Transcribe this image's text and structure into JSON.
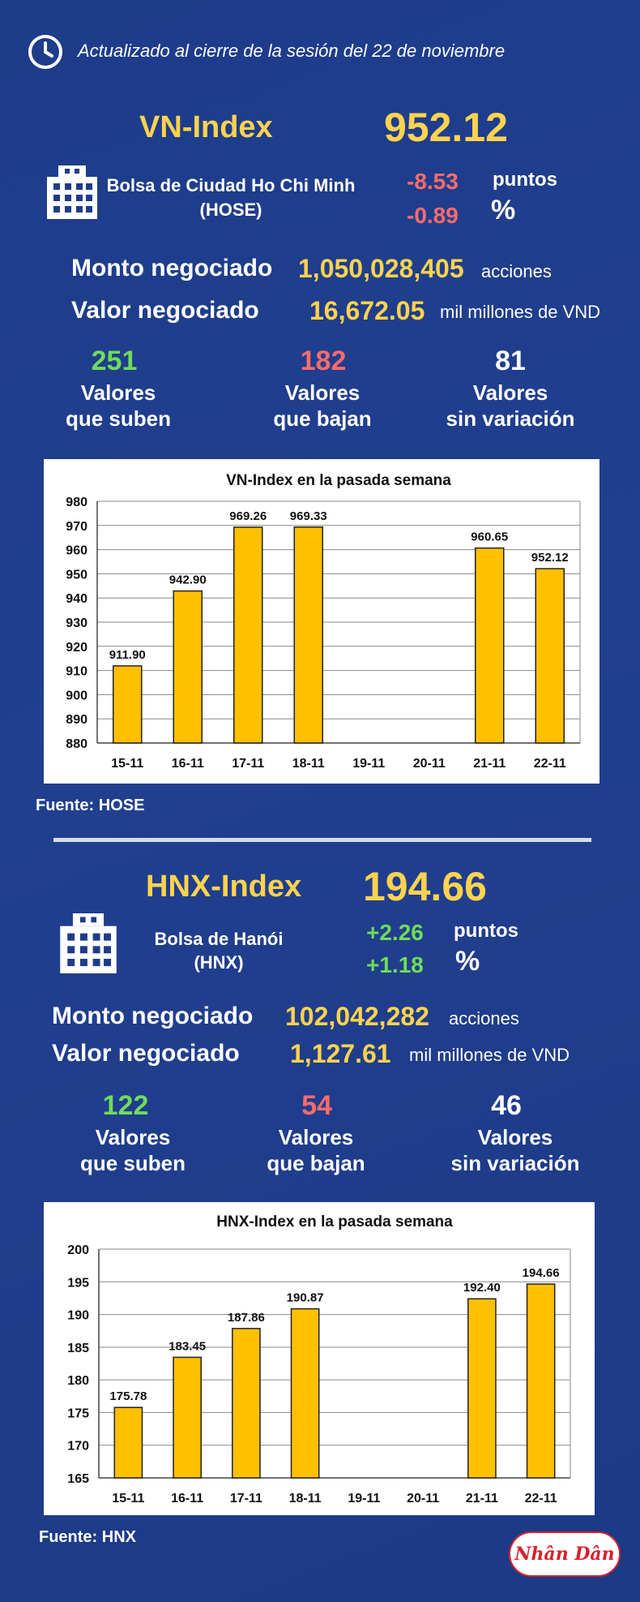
{
  "header": {
    "updated_text": "Actualizado al cierre de la sesión del 22 de noviembre",
    "icon": "clock-icon"
  },
  "hose": {
    "index_name": "VN-Index",
    "index_value": "952.12",
    "exchange_name": "Bolsa de Ciudad Ho Chi Minh",
    "exchange_code": "(HOSE)",
    "change_points": "-8.53",
    "change_points_unit": "puntos",
    "change_percent": "-0.89",
    "change_percent_unit": "%",
    "volume_label": "Monto negociado",
    "volume_value": "1,050,028,405",
    "volume_unit": "acciones",
    "value_label": "Valor negociado",
    "value_value": "16,672.05",
    "value_unit": "mil millones de VND",
    "up_count": "251",
    "up_label_1": "Valores",
    "up_label_2": "que suben",
    "down_count": "182",
    "down_label_1": "Valores",
    "down_label_2": "que bajan",
    "flat_count": "81",
    "flat_label_1": "Valores",
    "flat_label_2": "sin variación",
    "source": "Fuente: HOSE"
  },
  "hnx": {
    "index_name": "HNX-Index",
    "index_value": "194.66",
    "exchange_name": "Bolsa de Hanói",
    "exchange_code": "(HNX)",
    "change_points": "+2.26",
    "change_points_unit": "puntos",
    "change_percent": "+1.18",
    "change_percent_unit": "%",
    "volume_label": "Monto negociado",
    "volume_value": "102,042,282",
    "volume_unit": "acciones",
    "value_label": "Valor negociado",
    "value_value": "1,127.61",
    "value_unit": "mil millones de VND",
    "up_count": "122",
    "up_label_1": "Valores",
    "up_label_2": "que suben",
    "down_count": "54",
    "down_label_1": "Valores",
    "down_label_2": "que bajan",
    "flat_count": "46",
    "flat_label_1": "Valores",
    "flat_label_2": "sin variación",
    "source": "Fuente:  HNX"
  },
  "logo_text": "Nhân Dân",
  "colors": {
    "background": "#1e3c8a",
    "accent_yellow": "#ffd34e",
    "down_red": "#ff6b6b",
    "up_green": "#6fdc5a",
    "bar_fill": "#ffc000"
  },
  "chart_data": [
    {
      "type": "bar",
      "title": "VN-Index en la pasada semana",
      "categories": [
        "15-11",
        "16-11",
        "17-11",
        "18-11",
        "19-11",
        "20-11",
        "21-11",
        "22-11"
      ],
      "values": [
        911.9,
        942.9,
        969.26,
        969.33,
        null,
        null,
        960.65,
        952.12
      ],
      "labels": [
        "911.90",
        "942.90",
        "969.26",
        "969.33",
        "",
        "",
        "960.65",
        "952.12"
      ],
      "ylim": [
        880,
        980
      ],
      "yticks": [
        880,
        890,
        900,
        910,
        920,
        930,
        940,
        950,
        960,
        970,
        980
      ],
      "grid": true,
      "legend": "none"
    },
    {
      "type": "bar",
      "title": "HNX-Index en la pasada semana",
      "categories": [
        "15-11",
        "16-11",
        "17-11",
        "18-11",
        "19-11",
        "20-11",
        "21-11",
        "22-11"
      ],
      "values": [
        175.78,
        183.45,
        187.86,
        190.87,
        null,
        null,
        192.4,
        194.66
      ],
      "labels": [
        "175.78",
        "183.45",
        "187.86",
        "190.87",
        "",
        "",
        "192.40",
        "194.66"
      ],
      "ylim": [
        165,
        200
      ],
      "yticks": [
        165,
        170,
        175,
        180,
        185,
        190,
        195,
        200
      ],
      "grid": true,
      "legend": "none"
    }
  ]
}
